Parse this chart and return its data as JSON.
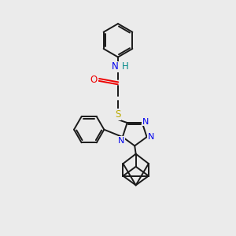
{
  "bg_color": "#ebebeb",
  "bond_color": "#1a1a1a",
  "N_color": "#0000ee",
  "O_color": "#ee0000",
  "S_color": "#bbaa00",
  "H_color": "#008888",
  "fig_w": 3.0,
  "fig_h": 3.0,
  "dpi": 100,
  "xlim": [
    0,
    10
  ],
  "ylim": [
    0,
    10
  ]
}
